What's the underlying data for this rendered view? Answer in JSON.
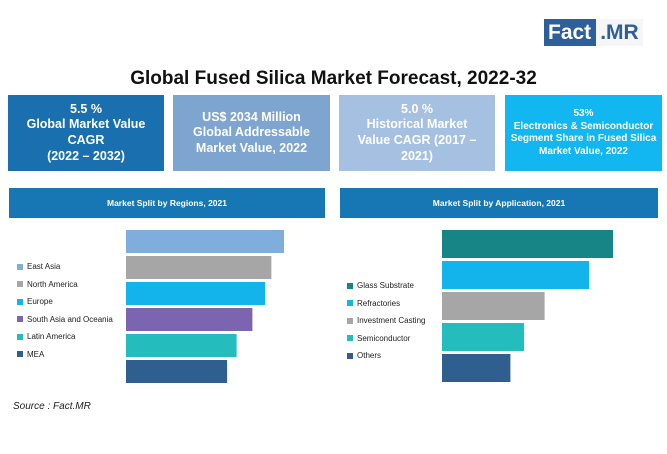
{
  "logo": {
    "part1": "Fact",
    "part2": ".MR"
  },
  "title": "Global Fused Silica Market Forecast, 2022-32",
  "stats": [
    {
      "text": "5.5 %\nGlobal Market Value\nCAGR\n(2022 – 2032)"
    },
    {
      "text": "US$ 2034 Million\nGlobal Addressable\nMarket Value, 2022"
    },
    {
      "text": "5.0 %\nHistorical Market\nValue CAGR (2017 –\n2021)"
    },
    {
      "text": "53%\nElectronics & Semiconductor\nSegment Share in Fused Silica\nMarket Value, 2022"
    }
  ],
  "source": "Source : Fact.MR",
  "colors": {
    "primary": "#1677b4",
    "brand": "#2f5f9a"
  },
  "chart_data": [
    {
      "type": "bar",
      "orientation": "horizontal",
      "title": "Market Split by Regions, 2021",
      "legend_position": "left",
      "categories": [
        "East Asia",
        "North America",
        "Europe",
        "South Asia and Oceania",
        "Latin America",
        "MEA"
      ],
      "values": [
        100,
        92,
        88,
        80,
        70,
        64
      ],
      "colors": [
        "#7faedd",
        "#a6a6a6",
        "#13b4ec",
        "#7b64b0",
        "#25bcbe",
        "#2e5f8e"
      ]
    },
    {
      "type": "bar",
      "orientation": "horizontal",
      "title": "Market Split by Application, 2021",
      "legend_position": "left",
      "categories": [
        "Glass Substrate",
        "Refractories",
        "Investment Casting",
        "Semiconductor",
        "Others"
      ],
      "values": [
        100,
        86,
        60,
        48,
        40
      ],
      "colors": [
        "#178486",
        "#13b4ec",
        "#a6a6a6",
        "#25bcbe",
        "#2e5f8e"
      ]
    }
  ]
}
